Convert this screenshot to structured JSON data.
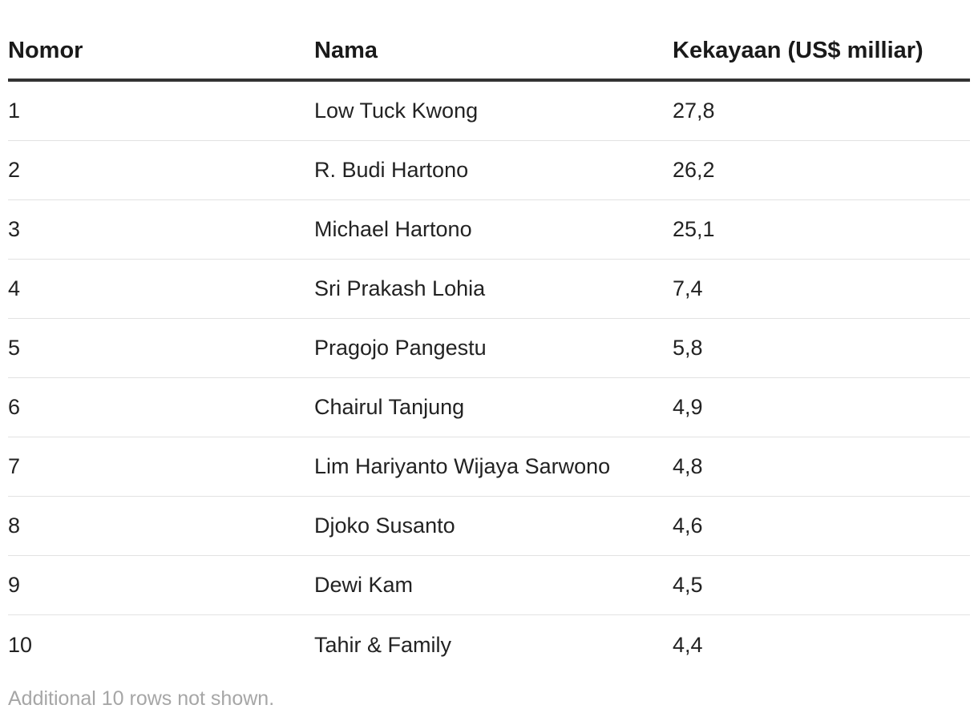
{
  "chart_data": {
    "type": "table",
    "columns": [
      "Nomor",
      "Nama",
      "Kekayaan (US$ milliar)"
    ],
    "rows": [
      {
        "rank": "1",
        "name": "Low Tuck Kwong",
        "wealth": "27,8"
      },
      {
        "rank": "2",
        "name": "R. Budi Hartono",
        "wealth": "26,2"
      },
      {
        "rank": "3",
        "name": "Michael Hartono",
        "wealth": "25,1"
      },
      {
        "rank": "4",
        "name": "Sri Prakash Lohia",
        "wealth": "7,4"
      },
      {
        "rank": "5",
        "name": "Pragojo Pangestu",
        "wealth": "5,8"
      },
      {
        "rank": "6",
        "name": "Chairul Tanjung",
        "wealth": "4,9"
      },
      {
        "rank": "7",
        "name": "Lim Hariyanto Wijaya Sarwono",
        "wealth": "4,8"
      },
      {
        "rank": "8",
        "name": "Djoko Susanto",
        "wealth": "4,6"
      },
      {
        "rank": "9",
        "name": "Dewi Kam",
        "wealth": "4,5"
      },
      {
        "rank": "10",
        "name": "Tahir & Family",
        "wealth": "4,4"
      }
    ],
    "footnote": "Additional 10 rows not shown."
  },
  "colors": {
    "header_rule": "#333333",
    "row_divider": "#e2e2e2",
    "text": "#222222",
    "footnote": "#a6a6a6"
  }
}
